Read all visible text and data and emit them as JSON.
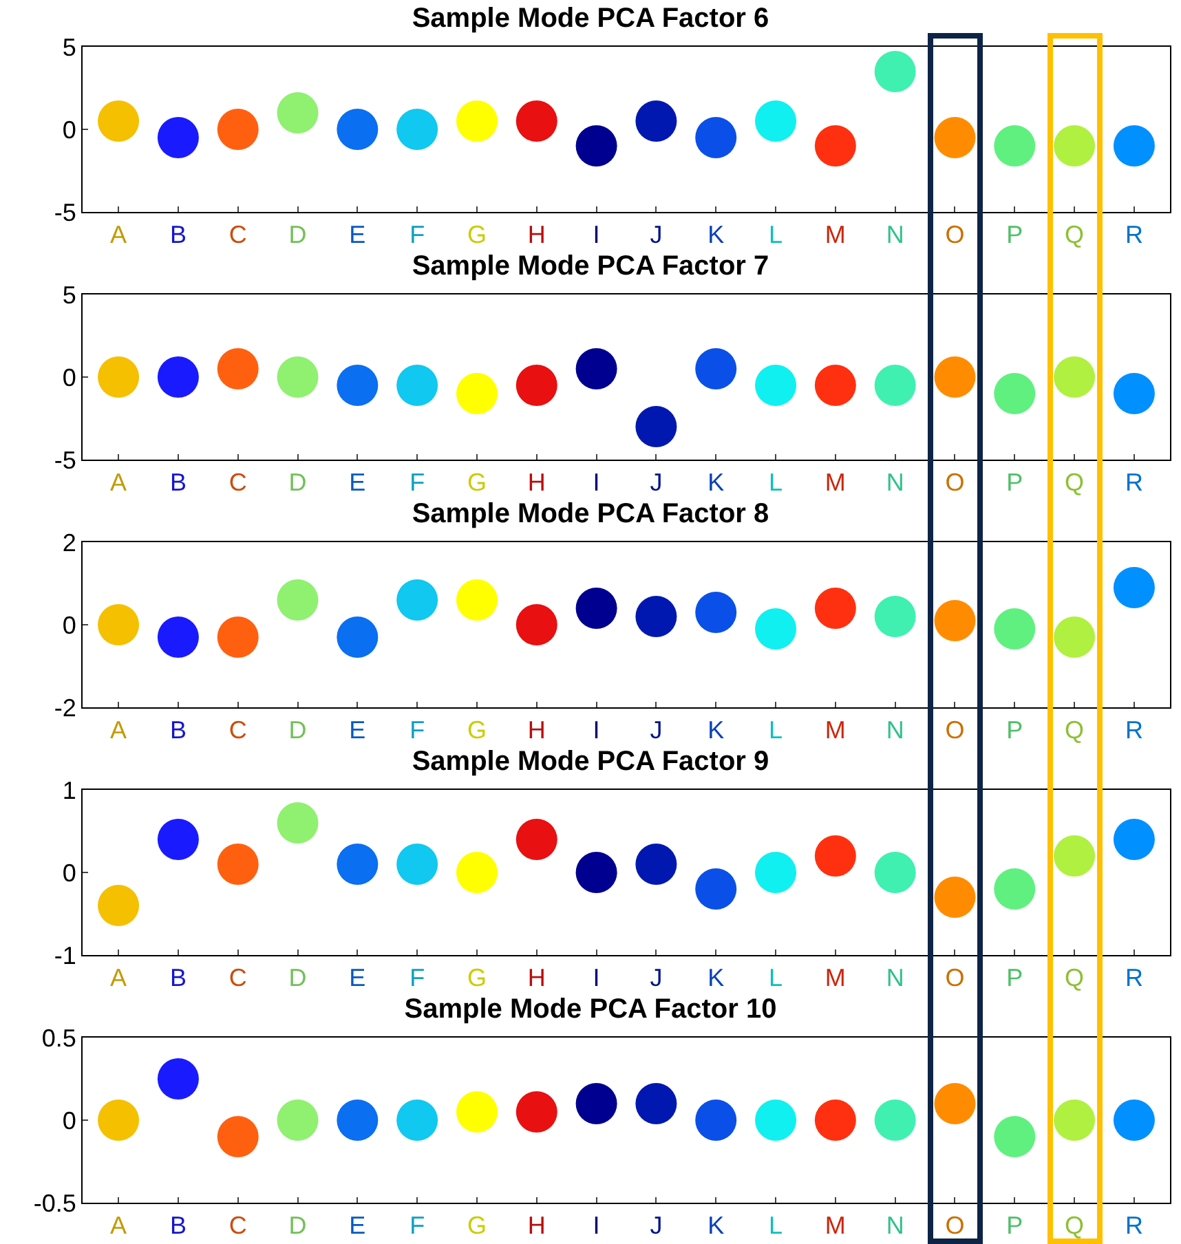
{
  "chart_data": [
    {
      "type": "scatter",
      "title": "Sample Mode PCA Factor 6",
      "categories": [
        "A",
        "B",
        "C",
        "D",
        "E",
        "F",
        "G",
        "H",
        "I",
        "J",
        "K",
        "L",
        "M",
        "N",
        "O",
        "P",
        "Q",
        "R"
      ],
      "values": [
        0.5,
        -0.5,
        0,
        1,
        0,
        0,
        0.5,
        0.5,
        -1,
        0.5,
        -0.5,
        0.5,
        -1,
        3.5,
        -0.5,
        -1,
        -1,
        -1
      ],
      "colors": [
        "#f5c000",
        "#1a1aff",
        "#ff6010",
        "#90f070",
        "#0a6ff0",
        "#10c8f0",
        "#ffff00",
        "#e81010",
        "#000090",
        "#0018b0",
        "#0a50e8",
        "#10f0f0",
        "#ff3010",
        "#40f0b0",
        "#ff8c00",
        "#60f080",
        "#b0f040",
        "#0090ff"
      ],
      "ylim": [
        -5,
        5
      ],
      "yticks": [
        -5,
        0,
        5
      ],
      "marker": "circle",
      "grid": false
    },
    {
      "type": "scatter",
      "title": "Sample Mode PCA Factor 7",
      "categories": [
        "A",
        "B",
        "C",
        "D",
        "E",
        "F",
        "G",
        "H",
        "I",
        "J",
        "K",
        "L",
        "M",
        "N",
        "O",
        "P",
        "Q",
        "R"
      ],
      "values": [
        0,
        0,
        0.5,
        0,
        -0.5,
        -0.5,
        -1,
        -0.5,
        0.5,
        -3,
        0.5,
        -0.5,
        -0.5,
        -0.5,
        0,
        -1,
        0,
        -1
      ],
      "colors": [
        "#f5c000",
        "#1a1aff",
        "#ff6010",
        "#90f070",
        "#0a6ff0",
        "#10c8f0",
        "#ffff00",
        "#e81010",
        "#000090",
        "#0018b0",
        "#0a50e8",
        "#10f0f0",
        "#ff3010",
        "#40f0b0",
        "#ff8c00",
        "#60f080",
        "#b0f040",
        "#0090ff"
      ],
      "ylim": [
        -5,
        5
      ],
      "yticks": [
        -5,
        0,
        5
      ],
      "marker": "circle",
      "grid": false
    },
    {
      "type": "scatter",
      "title": "Sample Mode PCA Factor 8",
      "categories": [
        "A",
        "B",
        "C",
        "D",
        "E",
        "F",
        "G",
        "H",
        "I",
        "J",
        "K",
        "L",
        "M",
        "N",
        "O",
        "P",
        "Q",
        "R"
      ],
      "values": [
        0,
        -0.3,
        -0.3,
        0.6,
        -0.3,
        0.6,
        0.6,
        0,
        0.4,
        0.2,
        0.3,
        -0.1,
        0.4,
        0.2,
        0.1,
        -0.1,
        -0.3,
        0.9
      ],
      "colors": [
        "#f5c000",
        "#1a1aff",
        "#ff6010",
        "#90f070",
        "#0a6ff0",
        "#10c8f0",
        "#ffff00",
        "#e81010",
        "#000090",
        "#0018b0",
        "#0a50e8",
        "#10f0f0",
        "#ff3010",
        "#40f0b0",
        "#ff8c00",
        "#60f080",
        "#b0f040",
        "#0090ff"
      ],
      "ylim": [
        -2,
        2
      ],
      "yticks": [
        -2,
        0,
        2
      ],
      "marker": "circle",
      "grid": false
    },
    {
      "type": "scatter",
      "title": "Sample Mode PCA Factor 9",
      "categories": [
        "A",
        "B",
        "C",
        "D",
        "E",
        "F",
        "G",
        "H",
        "I",
        "J",
        "K",
        "L",
        "M",
        "N",
        "O",
        "P",
        "Q",
        "R"
      ],
      "values": [
        -0.4,
        0.4,
        0.1,
        0.6,
        0.1,
        0.1,
        0,
        0.4,
        0,
        0.1,
        -0.2,
        0,
        0.2,
        0,
        -0.3,
        -0.2,
        0.2,
        0.4
      ],
      "colors": [
        "#f5c000",
        "#1a1aff",
        "#ff6010",
        "#90f070",
        "#0a6ff0",
        "#10c8f0",
        "#ffff00",
        "#e81010",
        "#000090",
        "#0018b0",
        "#0a50e8",
        "#10f0f0",
        "#ff3010",
        "#40f0b0",
        "#ff8c00",
        "#60f080",
        "#b0f040",
        "#0090ff"
      ],
      "ylim": [
        -1,
        1
      ],
      "yticks": [
        -1,
        0,
        1
      ],
      "marker": "circle",
      "grid": false
    },
    {
      "type": "scatter",
      "title": "Sample Mode PCA Factor 10",
      "categories": [
        "A",
        "B",
        "C",
        "D",
        "E",
        "F",
        "G",
        "H",
        "I",
        "J",
        "K",
        "L",
        "M",
        "N",
        "O",
        "P",
        "Q",
        "R"
      ],
      "values": [
        0,
        0.25,
        -0.1,
        0,
        0,
        0,
        0.05,
        0.05,
        0.1,
        0.1,
        0,
        0,
        0,
        0,
        0.1,
        -0.1,
        0,
        0
      ],
      "colors": [
        "#f5c000",
        "#1a1aff",
        "#ff6010",
        "#90f070",
        "#0a6ff0",
        "#10c8f0",
        "#ffff00",
        "#e81010",
        "#000090",
        "#0018b0",
        "#0a50e8",
        "#10f0f0",
        "#ff3010",
        "#40f0b0",
        "#ff8c00",
        "#60f080",
        "#b0f040",
        "#0090ff"
      ],
      "ylim": [
        -0.5,
        0.5
      ],
      "yticks": [
        -0.5,
        0,
        0.5
      ],
      "marker": "circle",
      "grid": false
    }
  ]
}
